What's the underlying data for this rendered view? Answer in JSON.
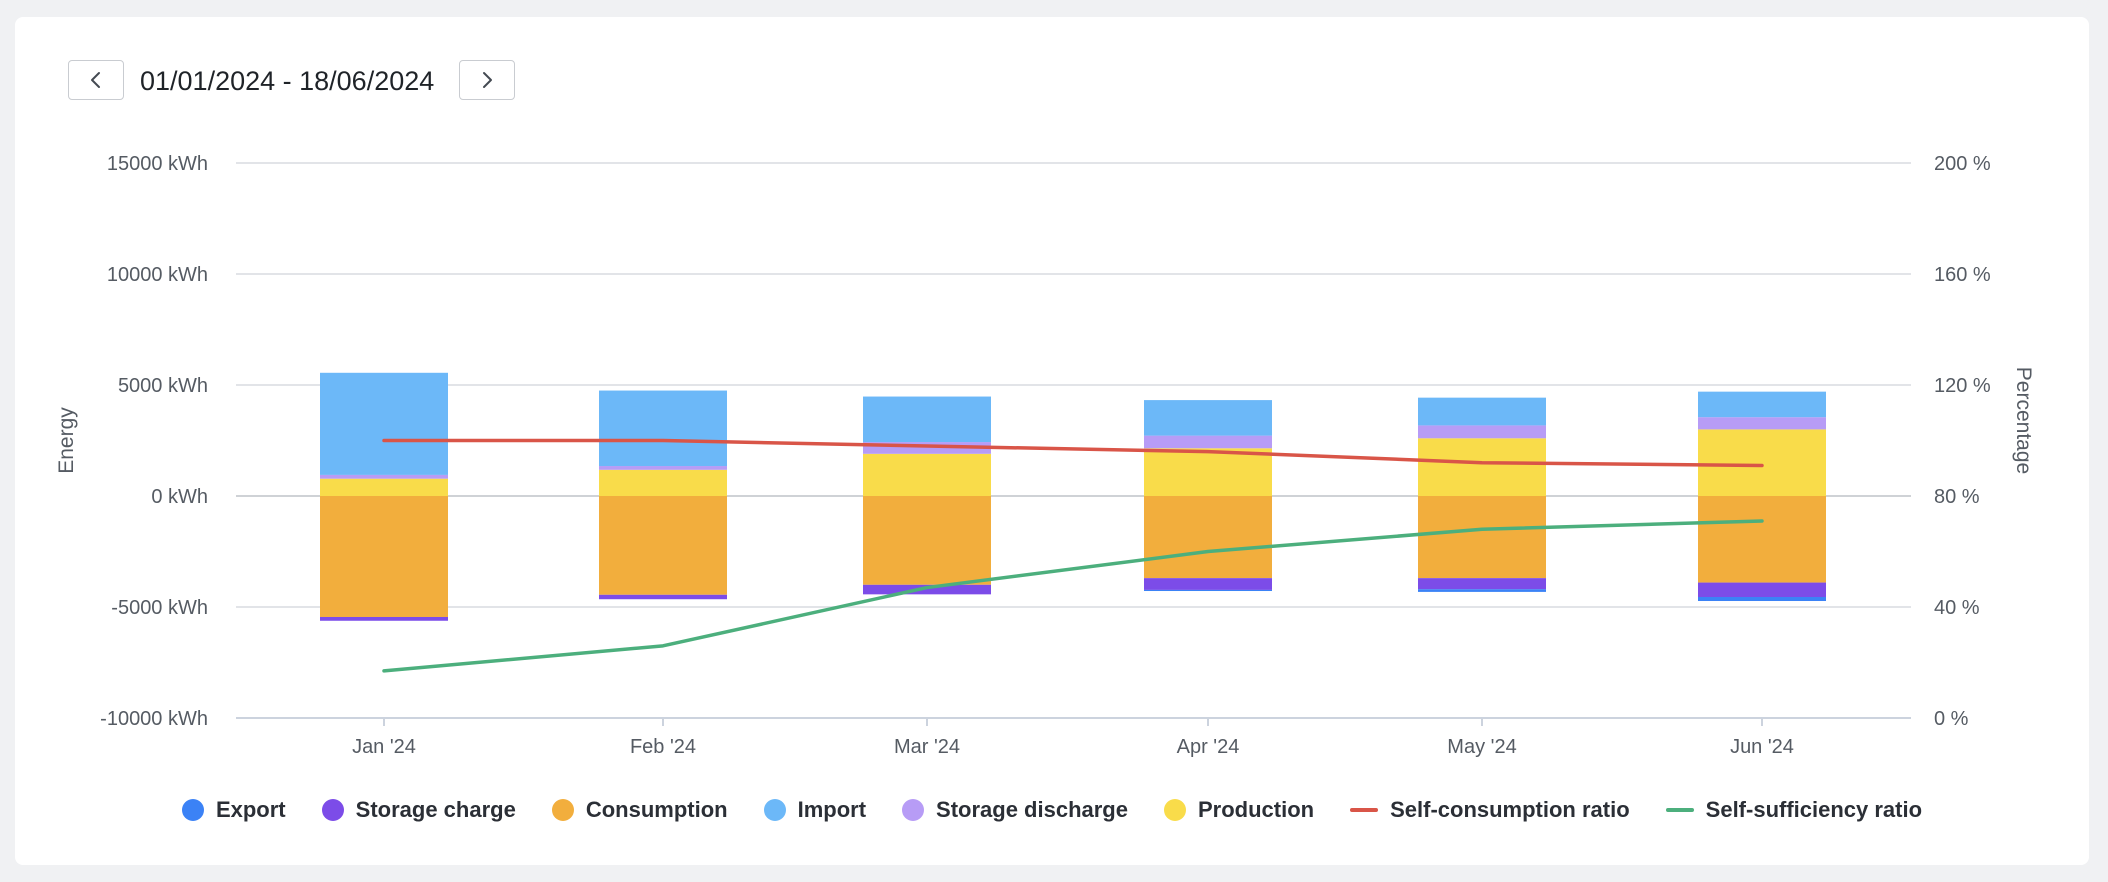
{
  "header": {
    "date_range": "01/01/2024 - 18/06/2024",
    "prev_icon": "chevron-left-icon",
    "next_icon": "chevron-right-icon"
  },
  "colors": {
    "export": "#3b82f6",
    "storage_charge": "#7c4ce8",
    "consumption": "#f2ae3d",
    "import": "#6cb8f8",
    "storage_discharge": "#b79cf6",
    "production": "#f9dc4a",
    "self_consumption": "#d95548",
    "self_sufficiency": "#4caf7d",
    "grid": "#e2e4e8",
    "zero_line": "#cfd2d6"
  },
  "chart_data": {
    "type": "bar",
    "categories": [
      "Jan '24",
      "Feb '24",
      "Mar '24",
      "Apr '24",
      "May '24",
      "Jun '24"
    ],
    "y_left": {
      "label": "Energy",
      "ylim": [
        -10000,
        15000
      ],
      "ticks": [
        15000,
        10000,
        5000,
        0,
        -5000,
        -10000
      ],
      "tick_labels": [
        "15000 kWh",
        "10000 kWh",
        "5000 kWh",
        "0 kWh",
        "-5000 kWh",
        "-10000 kWh"
      ]
    },
    "y_right": {
      "label": "Percentage",
      "ylim": [
        0,
        200
      ],
      "ticks": [
        200,
        160,
        120,
        80,
        40,
        0
      ],
      "tick_labels": [
        "200 %",
        "160 %",
        "120 %",
        "80 %",
        "40 %",
        "0 %"
      ]
    },
    "positive_series": [
      {
        "name": "Production",
        "key": "production",
        "values": [
          780,
          1180,
          1900,
          2150,
          2600,
          3000
        ]
      },
      {
        "name": "Storage discharge",
        "key": "storage_discharge",
        "values": [
          170,
          170,
          530,
          570,
          580,
          550
        ]
      },
      {
        "name": "Import",
        "key": "import",
        "values": [
          4600,
          3400,
          2050,
          1600,
          1250,
          1150
        ]
      }
    ],
    "negative_series": [
      {
        "name": "Consumption",
        "key": "consumption",
        "values": [
          -5450,
          -4450,
          -4000,
          -3700,
          -3700,
          -3900
        ]
      },
      {
        "name": "Storage charge",
        "key": "storage_charge",
        "values": [
          -170,
          -200,
          -430,
          -530,
          -500,
          -650
        ]
      },
      {
        "name": "Export",
        "key": "export",
        "values": [
          0,
          0,
          0,
          -50,
          -120,
          -180
        ]
      }
    ],
    "line_series": [
      {
        "name": "Self-consumption ratio",
        "key": "self_consumption",
        "values": [
          100,
          100,
          98,
          96,
          92,
          91
        ]
      },
      {
        "name": "Self-sufficiency ratio",
        "key": "self_sufficiency",
        "values": [
          17,
          26,
          47,
          60,
          68,
          71
        ]
      }
    ],
    "legend": [
      {
        "label": "Export",
        "key": "export",
        "shape": "dot"
      },
      {
        "label": "Storage charge",
        "key": "storage_charge",
        "shape": "dot"
      },
      {
        "label": "Consumption",
        "key": "consumption",
        "shape": "dot"
      },
      {
        "label": "Import",
        "key": "import",
        "shape": "dot"
      },
      {
        "label": "Storage discharge",
        "key": "storage_discharge",
        "shape": "dot"
      },
      {
        "label": "Production",
        "key": "production",
        "shape": "dot"
      },
      {
        "label": "Self-consumption ratio",
        "key": "self_consumption",
        "shape": "line"
      },
      {
        "label": "Self-sufficiency ratio",
        "key": "self_sufficiency",
        "shape": "line"
      }
    ],
    "legend_position": "bottom"
  }
}
